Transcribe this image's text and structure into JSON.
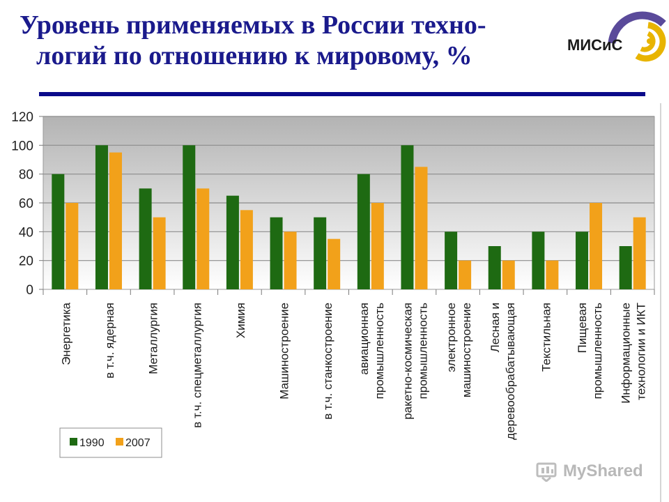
{
  "title": {
    "line1": "Уровень применяемых в России техно-",
    "line2": "логий по отношению к мировому, %"
  },
  "logo": {
    "text": "МИСиС",
    "icon": "misis-swirl-logo-icon"
  },
  "watermark": {
    "text": "MyShared",
    "icon": "myshared-icon"
  },
  "colors": {
    "series_1990": "#1e6a12",
    "series_2007": "#f2a11a",
    "title": "#1a1a8c",
    "rule": "#0a0a8a"
  },
  "chart_data": {
    "type": "bar",
    "categories": [
      [
        "Энергетика"
      ],
      [
        "в т.ч. ядерная"
      ],
      [
        "Металлургия"
      ],
      [
        "в т.ч. спецметаллургия"
      ],
      [
        "Химия"
      ],
      [
        "Машиностроение"
      ],
      [
        "в т.ч. станкостроение"
      ],
      [
        "авиационная",
        "промышленность"
      ],
      [
        "ракетно-космическая",
        "промышленность"
      ],
      [
        "электронное",
        "машиностроение"
      ],
      [
        "Лесная и",
        "деревообрабатывающая"
      ],
      [
        "Текстильная"
      ],
      [
        "Пищевая",
        "промышленность"
      ],
      [
        "Информационные",
        "технологии и ИКТ"
      ]
    ],
    "series": [
      {
        "name": "1990",
        "values": [
          80,
          100,
          70,
          100,
          65,
          50,
          50,
          80,
          100,
          40,
          30,
          40,
          40,
          30
        ]
      },
      {
        "name": "2007",
        "values": [
          60,
          95,
          50,
          70,
          55,
          40,
          35,
          60,
          85,
          20,
          20,
          20,
          60,
          50
        ]
      }
    ],
    "ylim": [
      0,
      120
    ],
    "yticks": [
      0,
      20,
      40,
      60,
      80,
      100,
      120
    ],
    "grid": true,
    "legend": "bottom-left"
  }
}
